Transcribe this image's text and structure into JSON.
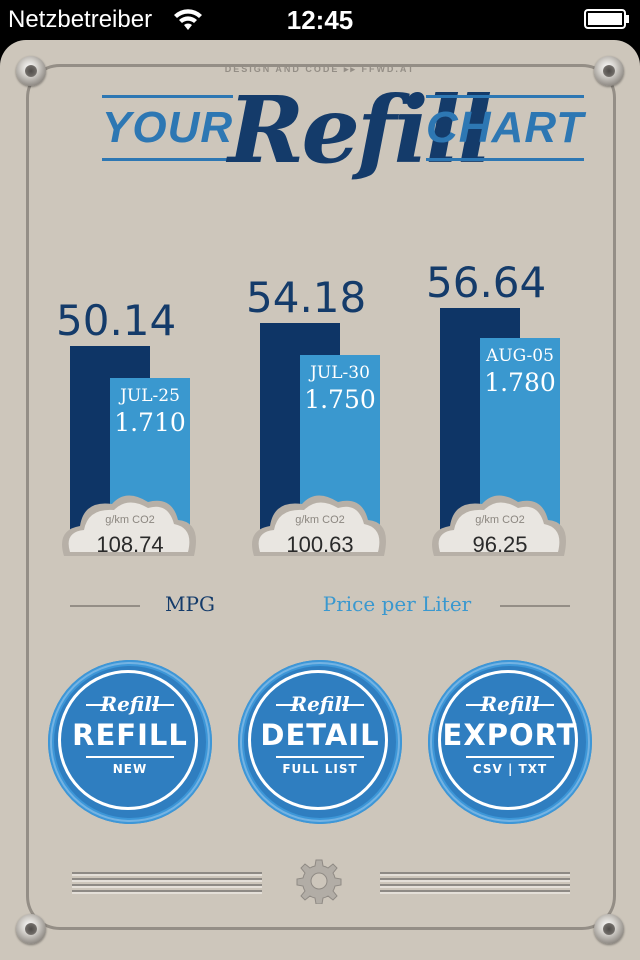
{
  "status_bar": {
    "carrier": "Netzbetreiber",
    "time": "12:45"
  },
  "header": {
    "credit": "DESIGN AND CODE ▸▸ FFWD.AT",
    "title_left": "YOUR",
    "title_main": "Refill",
    "title_right": "CHART"
  },
  "chart_data": {
    "type": "bar",
    "categories": [
      "JUL-25",
      "JUL-30",
      "AUG-05"
    ],
    "series": [
      {
        "name": "MPG",
        "values": [
          50.14,
          54.18,
          56.64
        ],
        "color": "#0e3566"
      },
      {
        "name": "Price per Liter",
        "values": [
          1.71,
          1.75,
          1.78
        ],
        "color": "#3a98cf"
      }
    ],
    "mpg_labels": [
      "50.14",
      "54.18",
      "56.64"
    ],
    "price_labels": [
      "1.710",
      "1.750",
      "1.780"
    ],
    "co2_unit": "g/km  CO2",
    "co2_values": [
      "108.74",
      "100.63",
      "96.25"
    ]
  },
  "legend": {
    "mpg": "MPG",
    "price": "Price per Liter"
  },
  "buttons": [
    {
      "script": "Refill",
      "label": "REFILL",
      "sub": "NEW"
    },
    {
      "script": "Refill",
      "label": "DETAIL",
      "sub": "FULL LIST"
    },
    {
      "script": "Refill",
      "label": "EXPORT",
      "sub": "CSV | TXT"
    }
  ],
  "colors": {
    "panel": "#cdc6bb",
    "navy": "#0e3566",
    "blue": "#3a98cf"
  },
  "icons": {
    "settings": "gear-icon",
    "wifi": "wifi-icon",
    "battery": "battery-icon"
  }
}
